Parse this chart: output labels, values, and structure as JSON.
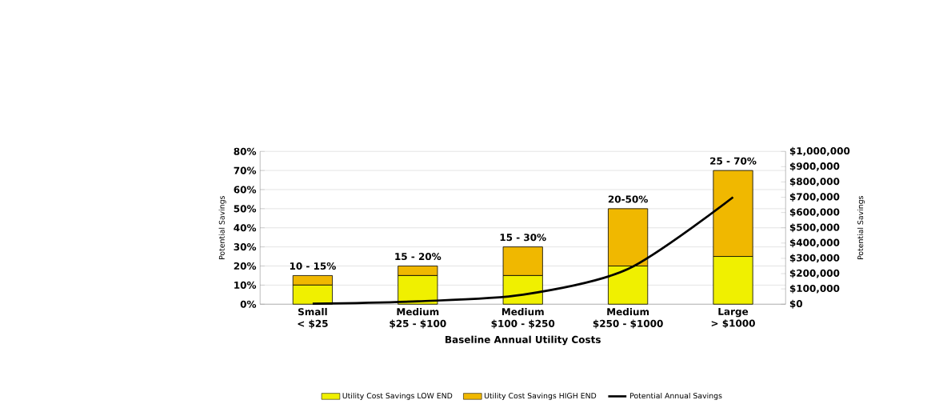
{
  "chart_data": {
    "type": "bar",
    "stacked": true,
    "categories": [
      "Small\n< $25",
      "Medium\n$25 - $100",
      "Medium\n$100 - $250",
      "Medium\n$250 - $1000",
      "Large\n> $1000"
    ],
    "xlabel": "Baseline Annual Utility Costs",
    "ylabel": "Potential Savings",
    "y2label": "Potential Savings",
    "series": [
      {
        "name": "Utility Cost Savings LOW END",
        "color": "#f0f000",
        "values": [
          10,
          15,
          15,
          20,
          25
        ]
      },
      {
        "name": "Utility Cost Savings HIGH END",
        "color": "#f0b800",
        "values": [
          5,
          5,
          15,
          30,
          45
        ]
      },
      {
        "name": "Potential Annual Savings",
        "type": "line",
        "axis": "y2",
        "color": "#000000",
        "values": [
          3000,
          19000,
          62000,
          230000,
          700000
        ]
      }
    ],
    "ylim": [
      0,
      80
    ],
    "yticks": [
      {
        "value": 0,
        "label": "0%"
      },
      {
        "value": 10,
        "label": "10%"
      },
      {
        "value": 20,
        "label": "20%"
      },
      {
        "value": 30,
        "label": "30%"
      },
      {
        "value": 40,
        "label": "40%"
      },
      {
        "value": 50,
        "label": "50%"
      },
      {
        "value": 60,
        "label": "60%"
      },
      {
        "value": 70,
        "label": "70%"
      },
      {
        "value": 80,
        "label": "80%"
      }
    ],
    "y2lim": [
      0,
      1000000
    ],
    "y2ticks": [
      {
        "value": 0,
        "label": "$0"
      },
      {
        "value": 100000,
        "label": "$100,000"
      },
      {
        "value": 200000,
        "label": "$200,000"
      },
      {
        "value": 300000,
        "label": "$300,000"
      },
      {
        "value": 400000,
        "label": "$400,000"
      },
      {
        "value": 500000,
        "label": "$500,000"
      },
      {
        "value": 600000,
        "label": "$600,000"
      },
      {
        "value": 700000,
        "label": "$700,000"
      },
      {
        "value": 800000,
        "label": "$800,000"
      },
      {
        "value": 900000,
        "label": "$900,000"
      },
      {
        "value": 1000000,
        "label": "$1,000,000"
      }
    ],
    "annotations": [
      "10 - 15%",
      "15 - 20%",
      "15 - 30%",
      "20-50%",
      "25 - 70%"
    ],
    "grid": "y",
    "legend": "bottom"
  }
}
